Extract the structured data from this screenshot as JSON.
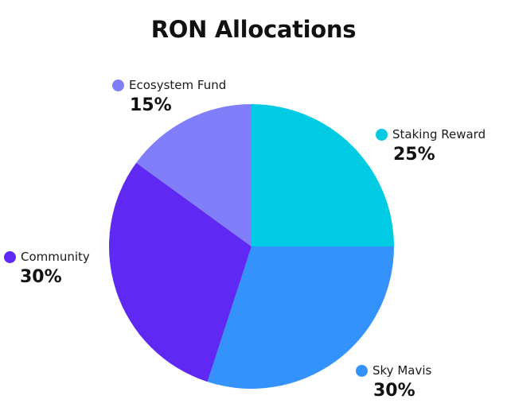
{
  "chart_data": {
    "type": "pie",
    "title": "RON Allocations",
    "slices": [
      {
        "label": "Staking Reward",
        "value": 25,
        "value_label": "25%",
        "color": "#00cbe3"
      },
      {
        "label": "Sky Mavis",
        "value": 30,
        "value_label": "30%",
        "color": "#3492fd"
      },
      {
        "label": "Community",
        "value": 30,
        "value_label": "30%",
        "color": "#6029f3"
      },
      {
        "label": "Ecosystem Fund",
        "value": 15,
        "value_label": "15%",
        "color": "#807ef9"
      }
    ],
    "start_angle": "12 o'clock",
    "direction": "clockwise"
  }
}
